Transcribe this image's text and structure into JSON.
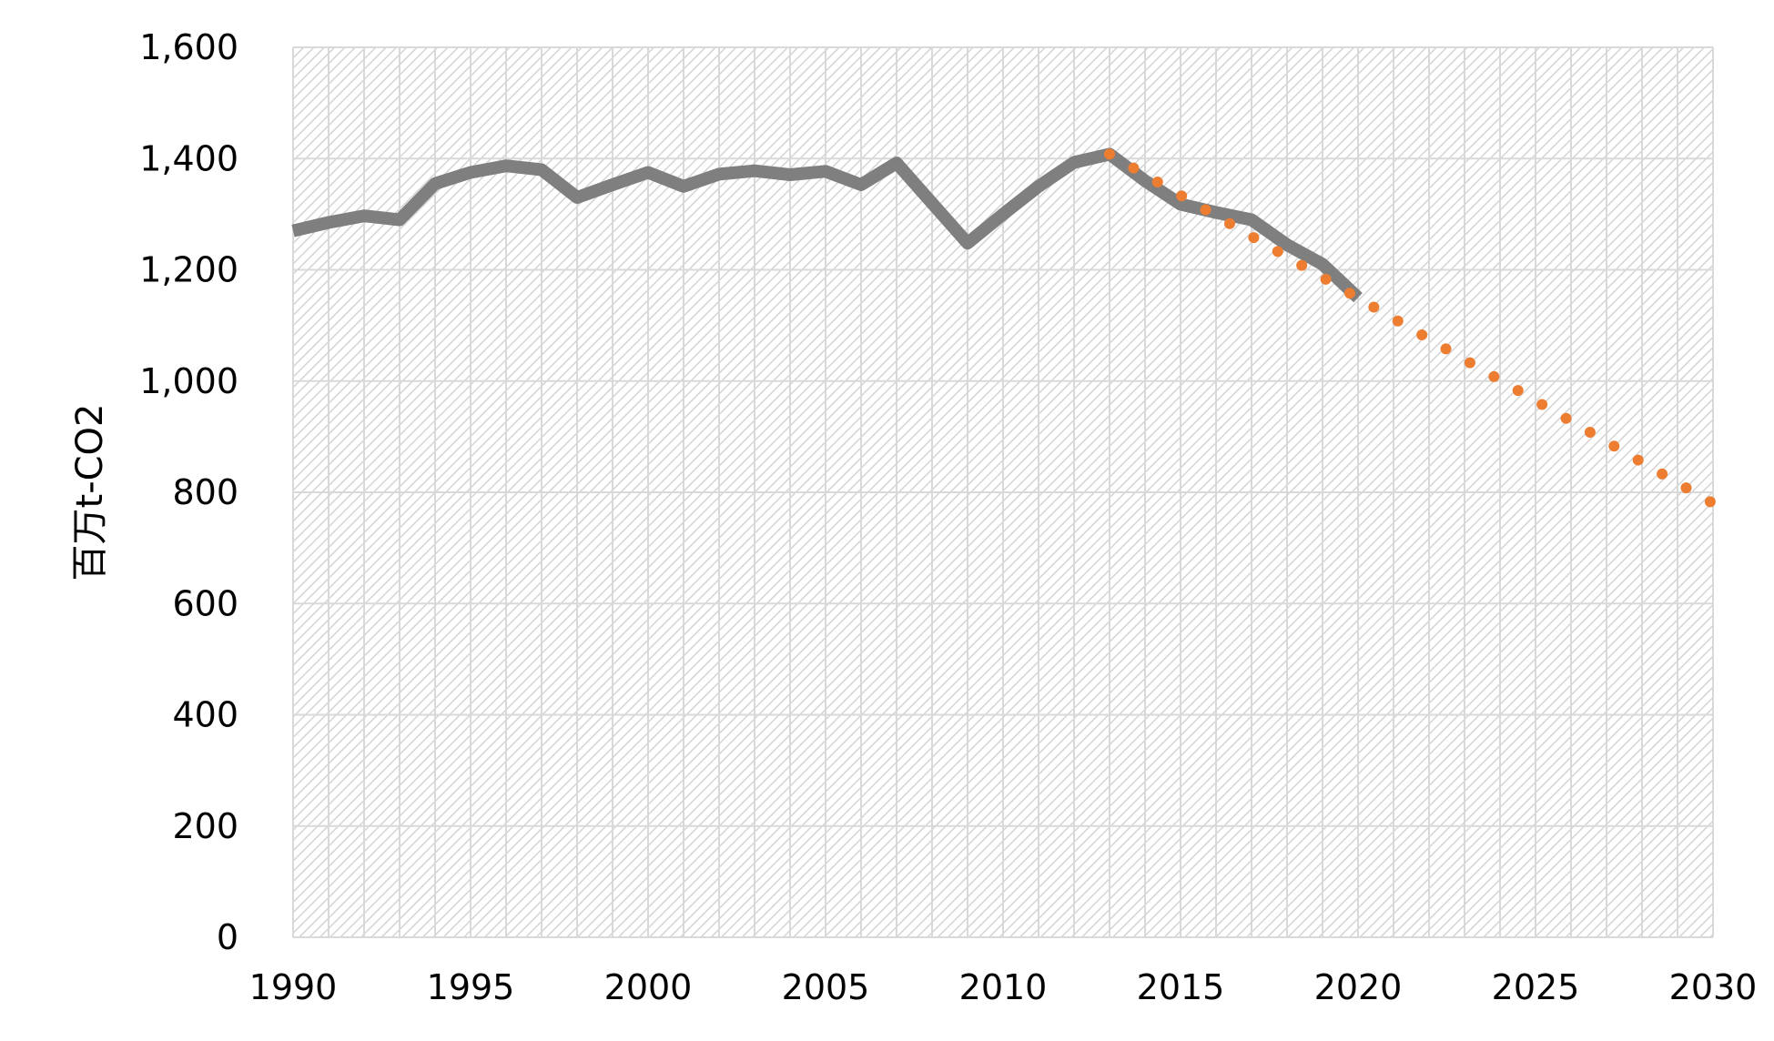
{
  "chart_data": {
    "type": "line",
    "title": "",
    "xlabel": "",
    "ylabel": "百万t-CO2",
    "xlim": [
      1990,
      2030
    ],
    "ylim": [
      0,
      1600
    ],
    "x_ticks": [
      1990,
      1995,
      2000,
      2005,
      2010,
      2015,
      2020,
      2025,
      2030
    ],
    "x_tick_labels": [
      "1990",
      "1995",
      "2000",
      "2005",
      "2010",
      "2015",
      "2020",
      "2025",
      "2030"
    ],
    "y_ticks": [
      0,
      200,
      400,
      600,
      800,
      1000,
      1200,
      1400,
      1600
    ],
    "y_tick_labels": [
      "0",
      "200",
      "400",
      "600",
      "800",
      "1,000",
      "1,200",
      "1,400",
      "1,600"
    ],
    "grid": true,
    "plot_background": "hatched",
    "legend": "none",
    "series": [
      {
        "style": "solid",
        "color": "#7f7f7f",
        "x": [
          1990,
          1991,
          1992,
          1993,
          1994,
          1995,
          1996,
          1997,
          1998,
          1999,
          2000,
          2001,
          2002,
          2003,
          2004,
          2005,
          2006,
          2007,
          2008,
          2009,
          2010,
          2011,
          2012,
          2013,
          2014,
          2015,
          2016,
          2017,
          2018,
          2019,
          2020
        ],
        "y": [
          1270,
          1285,
          1297,
          1290,
          1355,
          1375,
          1387,
          1380,
          1330,
          1353,
          1375,
          1350,
          1372,
          1378,
          1371,
          1377,
          1353,
          1392,
          1320,
          1248,
          1300,
          1350,
          1393,
          1408,
          1360,
          1318,
          1303,
          1290,
          1245,
          1210,
          1150
        ]
      },
      {
        "style": "dotted",
        "color": "#ed7d31",
        "x": [
          2013,
          2030
        ],
        "y": [
          1408,
          780
        ]
      }
    ]
  }
}
